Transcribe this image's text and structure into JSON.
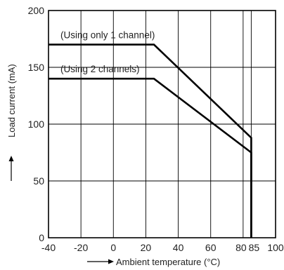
{
  "chart_data": {
    "type": "line",
    "xlabel": "Ambient temperature (°C)",
    "ylabel": "Load current (mA)",
    "xlim": [
      -40,
      100
    ],
    "ylim": [
      0,
      200
    ],
    "x_ticks": [
      -40,
      -20,
      0,
      20,
      40,
      60,
      80,
      85,
      100
    ],
    "x_tick_labels": [
      "-40",
      "-20",
      "0",
      "20",
      "40",
      "60",
      "80",
      "85",
      "100"
    ],
    "y_ticks": [
      0,
      50,
      100,
      150,
      200
    ],
    "y_tick_labels": [
      "0",
      "50",
      "100",
      "150",
      "200"
    ],
    "grid": true,
    "series": [
      {
        "name": "(Using only 1 channel)",
        "x": [
          -40,
          25,
          85,
          85
        ],
        "y": [
          170,
          170,
          88,
          0
        ]
      },
      {
        "name": "(Using 2 channels)",
        "x": [
          -40,
          25,
          85,
          85
        ],
        "y": [
          140,
          140,
          75,
          0
        ]
      }
    ]
  }
}
